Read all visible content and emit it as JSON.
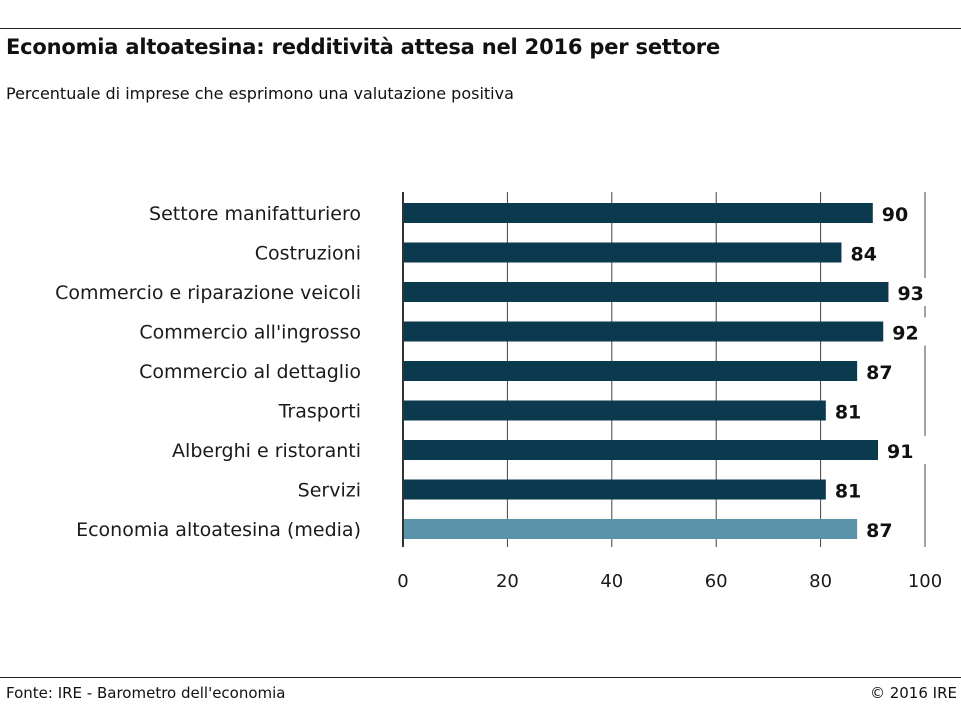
{
  "header": {
    "title": "Economia altoatesina: redditività attesa nel 2016 per settore",
    "subtitle": "Percentuale di imprese che esprimono una valutazione positiva"
  },
  "footer": {
    "source": "Fonte: IRE - Barometro dell'economia",
    "copyright": "© 2016 IRE"
  },
  "colors": {
    "bar_primary": "#0b3a4e",
    "bar_highlight": "#5b93ab",
    "axis": "#333333",
    "grid": "#444444"
  },
  "chart_data": {
    "type": "bar",
    "orientation": "horizontal",
    "title": "Economia altoatesina: redditività attesa nel 2016 per settore",
    "subtitle": "Percentuale di imprese che esprimono una valutazione positiva",
    "categories": [
      "Settore manifatturiero",
      "Costruzioni",
      "Commercio e riparazione veicoli",
      "Commercio all'ingrosso",
      "Commercio al dettaglio",
      "Trasporti",
      "Alberghi e ristoranti",
      "Servizi",
      "Economia altoatesina (media)"
    ],
    "values": [
      90,
      84,
      93,
      92,
      87,
      81,
      91,
      81,
      87
    ],
    "highlight": [
      false,
      false,
      false,
      false,
      false,
      false,
      false,
      false,
      true
    ],
    "xlim": [
      0,
      100
    ],
    "xticks": [
      0,
      20,
      40,
      60,
      80,
      100
    ],
    "xlabel": "",
    "ylabel": "",
    "grid": true,
    "legend": "none"
  }
}
